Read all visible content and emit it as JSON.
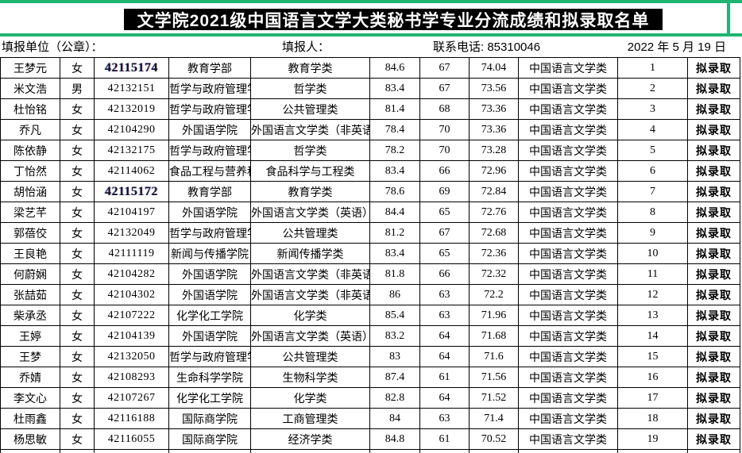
{
  "title": "文学院2021级中国语言文学大类秘书学专业分流成绩和拟录取名单",
  "meta": {
    "unit_label": "填报单位（公章）：",
    "filler_label": "填报人：",
    "phone_label": "联系电话: 85310046",
    "date_text": "2022 年 5 月  19 日"
  },
  "colors": {
    "accent_green": "#1fb473",
    "title_bg": "#000000",
    "title_fg": "#ffffff",
    "border": "#000000"
  },
  "table": {
    "column_names": [
      "name",
      "gender",
      "student_id",
      "college",
      "source_major",
      "score1",
      "score2",
      "score3",
      "target_major",
      "rank",
      "status"
    ],
    "rows": [
      {
        "name": "王梦元",
        "gender": "女",
        "student_id": "42115174",
        "id_bold": true,
        "college": "教育学部",
        "source_major": "教育学类",
        "score1": "84.6",
        "score2": "67",
        "score3": "74.04",
        "target_major": "中国语言文学类",
        "rank": "1",
        "status": "拟录取"
      },
      {
        "name": "米文浩",
        "gender": "男",
        "student_id": "42132151",
        "id_bold": false,
        "college": "哲学与政府管理学院",
        "source_major": "哲学类",
        "score1": "83.4",
        "score2": "67",
        "score3": "73.56",
        "target_major": "中国语言文学类",
        "rank": "2",
        "status": "拟录取"
      },
      {
        "name": "杜怡铭",
        "gender": "女",
        "student_id": "42132019",
        "id_bold": false,
        "college": "哲学与政府管理学院",
        "source_major": "公共管理类",
        "score1": "81.4",
        "score2": "68",
        "score3": "73.36",
        "target_major": "中国语言文学类",
        "rank": "3",
        "status": "拟录取"
      },
      {
        "name": "乔凡",
        "gender": "女",
        "student_id": "42104290",
        "id_bold": false,
        "college": "外国语学院",
        "source_major": "外国语言文学类（非英语）",
        "score1": "78.4",
        "score2": "70",
        "score3": "73.36",
        "target_major": "中国语言文学类",
        "rank": "4",
        "status": "拟录取"
      },
      {
        "name": "陈依静",
        "gender": "女",
        "student_id": "42132175",
        "id_bold": false,
        "college": "哲学与政府管理学院",
        "source_major": "哲学类",
        "score1": "78.2",
        "score2": "70",
        "score3": "73.28",
        "target_major": "中国语言文学类",
        "rank": "5",
        "status": "拟录取"
      },
      {
        "name": "丁怡然",
        "gender": "女",
        "student_id": "42114062",
        "id_bold": false,
        "college": "食品工程与营养科学学院",
        "source_major": "食品科学与工程类",
        "score1": "83.4",
        "score2": "66",
        "score3": "72.96",
        "target_major": "中国语言文学类",
        "rank": "6",
        "status": "拟录取"
      },
      {
        "name": "胡怡涵",
        "gender": "女",
        "student_id": "42115172",
        "id_bold": true,
        "college": "教育学部",
        "source_major": "教育学类",
        "score1": "78.6",
        "score2": "69",
        "score3": "72.84",
        "target_major": "中国语言文学类",
        "rank": "7",
        "status": "拟录取"
      },
      {
        "name": "梁艺芊",
        "gender": "女",
        "student_id": "42104197",
        "id_bold": false,
        "college": "外国语学院",
        "source_major": "外国语言文学类（英语）",
        "score1": "84.4",
        "score2": "65",
        "score3": "72.76",
        "target_major": "中国语言文学类",
        "rank": "8",
        "status": "拟录取"
      },
      {
        "name": "郭蓓佼",
        "gender": "女",
        "student_id": "42132049",
        "id_bold": false,
        "college": "哲学与政府管理学院",
        "source_major": "公共管理类",
        "score1": "81.2",
        "score2": "67",
        "score3": "72.68",
        "target_major": "中国语言文学类",
        "rank": "9",
        "status": "拟录取"
      },
      {
        "name": "王良艳",
        "gender": "女",
        "student_id": "42111119",
        "id_bold": false,
        "college": "新闻与传播学院",
        "source_major": "新闻传播学类",
        "score1": "83.4",
        "score2": "65",
        "score3": "72.36",
        "target_major": "中国语言文学类",
        "rank": "10",
        "status": "拟录取"
      },
      {
        "name": "何蔚娴",
        "gender": "女",
        "student_id": "42104282",
        "id_bold": false,
        "college": "外国语学院",
        "source_major": "外国语言文学类（非英语）",
        "score1": "81.8",
        "score2": "66",
        "score3": "72.32",
        "target_major": "中国语言文学类",
        "rank": "11",
        "status": "拟录取"
      },
      {
        "name": "张喆茹",
        "gender": "女",
        "student_id": "42104302",
        "id_bold": false,
        "college": "外国语学院",
        "source_major": "外国语言文学类（非英语）",
        "score1": "86",
        "score2": "63",
        "score3": "72.2",
        "target_major": "中国语言文学类",
        "rank": "12",
        "status": "拟录取"
      },
      {
        "name": "柴承丞",
        "gender": "女",
        "student_id": "42107222",
        "id_bold": false,
        "college": "化学化工学院",
        "source_major": "化学类",
        "score1": "85.4",
        "score2": "63",
        "score3": "71.96",
        "target_major": "中国语言文学类",
        "rank": "13",
        "status": "拟录取"
      },
      {
        "name": "王婷",
        "gender": "女",
        "student_id": "42104139",
        "id_bold": false,
        "college": "外国语学院",
        "source_major": "外国语言文学类（英语）",
        "score1": "83.2",
        "score2": "64",
        "score3": "71.68",
        "target_major": "中国语言文学类",
        "rank": "14",
        "status": "拟录取"
      },
      {
        "name": "王梦",
        "gender": "女",
        "student_id": "42132050",
        "id_bold": false,
        "college": "哲学与政府管理学院",
        "source_major": "公共管理类",
        "score1": "83",
        "score2": "64",
        "score3": "71.6",
        "target_major": "中国语言文学类",
        "rank": "15",
        "status": "拟录取"
      },
      {
        "name": "乔婧",
        "gender": "女",
        "student_id": "42108293",
        "id_bold": false,
        "college": "生命科学学院",
        "source_major": "生物科学类",
        "score1": "87.4",
        "score2": "61",
        "score3": "71.56",
        "target_major": "中国语言文学类",
        "rank": "16",
        "status": "拟录取"
      },
      {
        "name": "李文心",
        "gender": "女",
        "student_id": "42107267",
        "id_bold": false,
        "college": "化学化工学院",
        "source_major": "化学类",
        "score1": "82.8",
        "score2": "64",
        "score3": "71.52",
        "target_major": "中国语言文学类",
        "rank": "17",
        "status": "拟录取"
      },
      {
        "name": "杜雨鑫",
        "gender": "女",
        "student_id": "42116188",
        "id_bold": false,
        "college": "国际商学院",
        "source_major": "工商管理类",
        "score1": "84",
        "score2": "63",
        "score3": "71.4",
        "target_major": "中国语言文学类",
        "rank": "18",
        "status": "拟录取"
      },
      {
        "name": "杨思敏",
        "gender": "女",
        "student_id": "42116055",
        "id_bold": false,
        "college": "国际商学院",
        "source_major": "经济学类",
        "score1": "84.8",
        "score2": "61",
        "score3": "70.52",
        "target_major": "中国语言文学类",
        "rank": "19",
        "status": "拟录取"
      }
    ]
  }
}
